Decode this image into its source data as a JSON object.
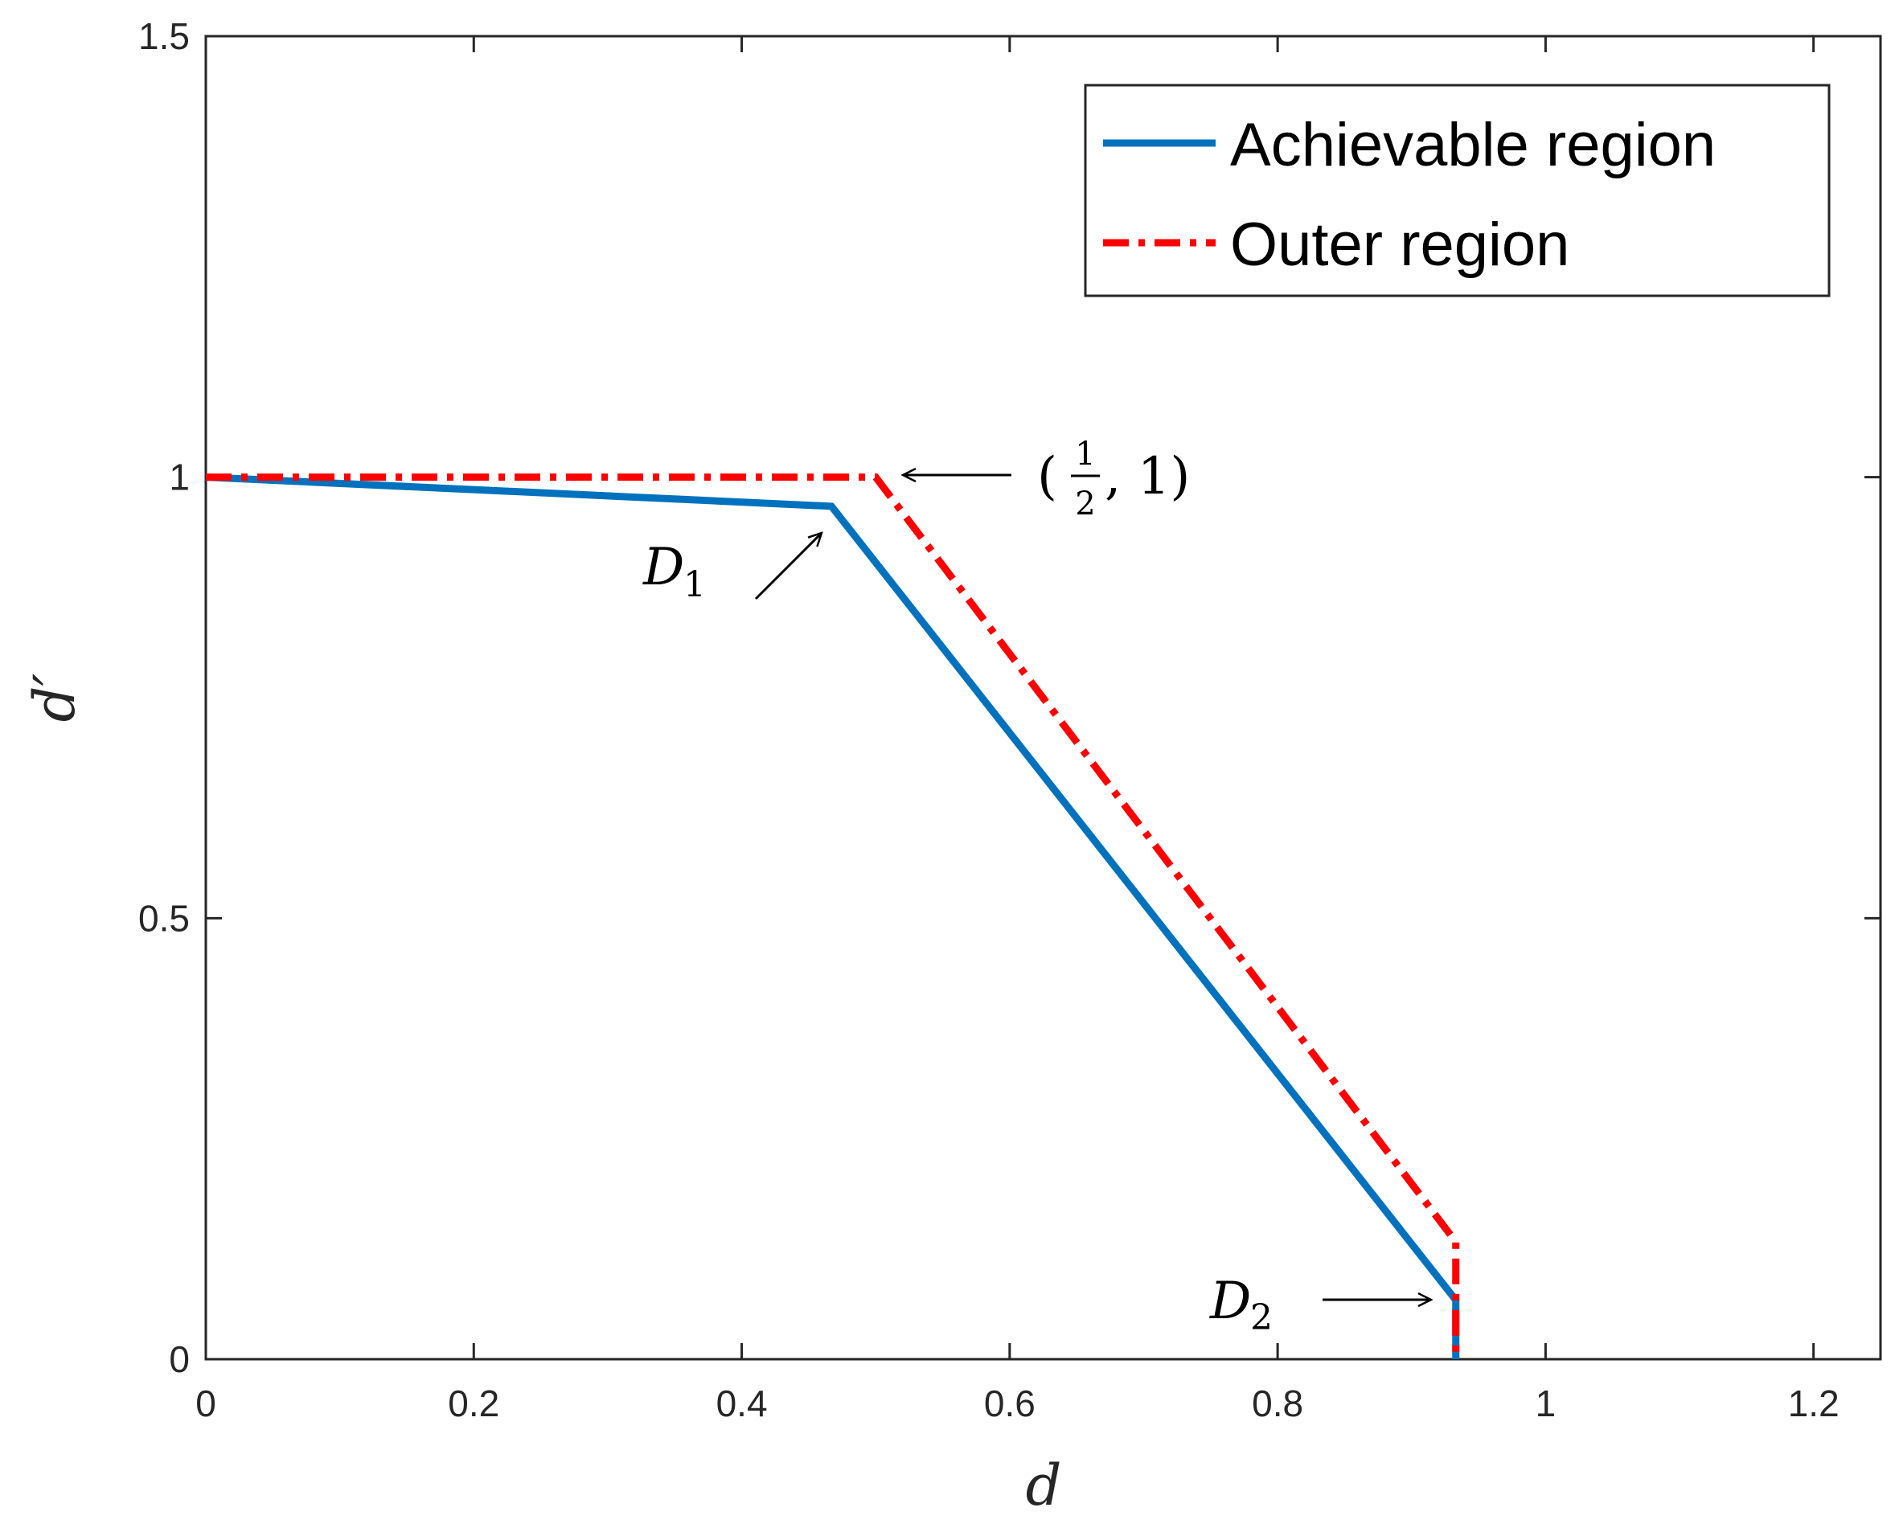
{
  "chart_data": {
    "type": "line",
    "xlabel": "d",
    "ylabel": "d′",
    "xlim": [
      0,
      1.25
    ],
    "ylim": [
      0,
      1.5
    ],
    "xticks": [
      0,
      0.2,
      0.4,
      0.6,
      0.8,
      1,
      1.2
    ],
    "xtick_labels": [
      "0",
      "0.2",
      "0.4",
      "0.6",
      "0.8",
      "1",
      "1.2"
    ],
    "yticks": [
      0,
      0.5,
      1,
      1.5
    ],
    "ytick_labels": [
      "0",
      "0.5",
      "1",
      "1.5"
    ],
    "grid": false,
    "legend_position": "top-right",
    "series": [
      {
        "name": "Achievable region",
        "color": "#0072BD",
        "style": "solid",
        "x": [
          0,
          0.467,
          0.933,
          0.933
        ],
        "y": [
          1,
          0.967,
          0.067,
          0
        ]
      },
      {
        "name": "Outer region",
        "color": "#FF0000",
        "style": "dash-dot",
        "x": [
          0,
          0.5,
          0.933,
          0.933
        ],
        "y": [
          1,
          1,
          0.133,
          0
        ]
      }
    ],
    "annotations": [
      {
        "id": "half-one",
        "text_open": "(",
        "frac_num": "1",
        "frac_den": "2",
        "text_rest": ", 1)",
        "arrow": "left",
        "target": [
          0.5,
          1
        ]
      },
      {
        "id": "D1",
        "text": "D",
        "sub": "1",
        "arrow": "up-right",
        "target": [
          0.467,
          0.967
        ]
      },
      {
        "id": "D2",
        "text": "D",
        "sub": "2",
        "arrow": "right",
        "target": [
          0.933,
          0.067
        ]
      }
    ]
  }
}
